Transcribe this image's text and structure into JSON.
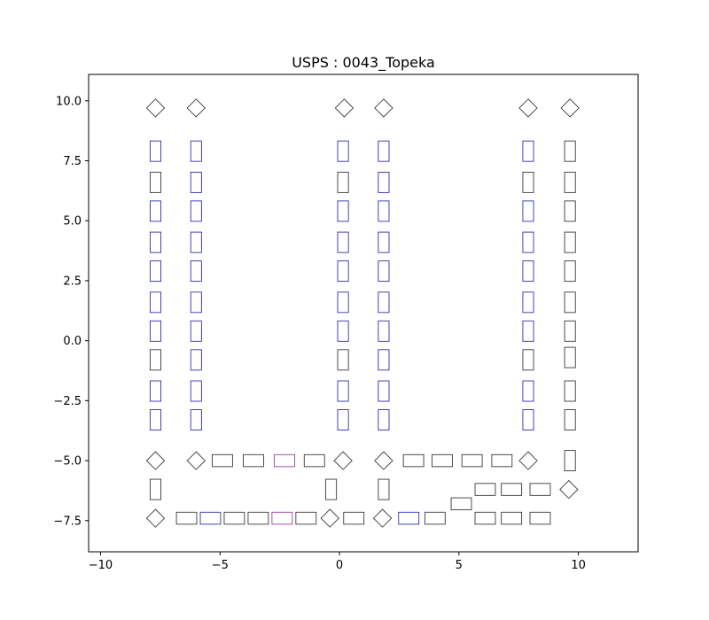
{
  "chart_data": {
    "type": "scatter",
    "title": "USPS : 0043_Topeka",
    "xlabel": "",
    "ylabel": "",
    "xlim": [
      -10.5,
      12.5
    ],
    "ylim": [
      -8.8,
      11.1
    ],
    "xticks": [
      -10,
      -5,
      0,
      5,
      10
    ],
    "yticks": [
      -7.5,
      -5.0,
      -2.5,
      0.0,
      2.5,
      5.0,
      7.5,
      10.0
    ],
    "xtick_labels": [
      "−10",
      "−5",
      "0",
      "5",
      "10"
    ],
    "ytick_labels": [
      "−7.5",
      "−5.0",
      "−2.5",
      "0.0",
      "2.5",
      "5.0",
      "7.5",
      "10.0"
    ],
    "grid": false,
    "colors": {
      "dark": "#3a3a3a",
      "blue": "#2f2fb8",
      "purple": "#a23aa2",
      "axes": "#000000"
    },
    "rect_size": {
      "vertical": [
        0.45,
        0.85
      ],
      "horizontal": [
        0.85,
        0.5
      ],
      "diamond": 0.65
    },
    "shapes": [
      {
        "kind": "diamond",
        "x": -7.7,
        "y": 9.7,
        "color": "dark"
      },
      {
        "kind": "diamond",
        "x": -6.0,
        "y": 9.7,
        "color": "dark"
      },
      {
        "kind": "diamond",
        "x": 0.2,
        "y": 9.7,
        "color": "dark"
      },
      {
        "kind": "diamond",
        "x": 1.85,
        "y": 9.7,
        "color": "dark"
      },
      {
        "kind": "diamond",
        "x": 7.9,
        "y": 9.7,
        "color": "dark"
      },
      {
        "kind": "diamond",
        "x": 9.65,
        "y": 9.7,
        "color": "dark"
      },
      {
        "kind": "vertical",
        "x": -7.7,
        "y": 7.9,
        "color": "blue"
      },
      {
        "kind": "vertical",
        "x": -7.7,
        "y": 6.6,
        "color": "dark"
      },
      {
        "kind": "vertical",
        "x": -7.7,
        "y": 5.4,
        "color": "blue"
      },
      {
        "kind": "vertical",
        "x": -7.7,
        "y": 4.1,
        "color": "blue"
      },
      {
        "kind": "vertical",
        "x": -7.7,
        "y": 2.9,
        "color": "blue"
      },
      {
        "kind": "vertical",
        "x": -7.7,
        "y": 1.6,
        "color": "blue"
      },
      {
        "kind": "vertical",
        "x": -7.7,
        "y": 0.4,
        "color": "blue"
      },
      {
        "kind": "vertical",
        "x": -7.7,
        "y": -0.8,
        "color": "dark"
      },
      {
        "kind": "vertical",
        "x": -7.7,
        "y": -2.1,
        "color": "blue"
      },
      {
        "kind": "vertical",
        "x": -7.7,
        "y": -3.3,
        "color": "blue"
      },
      {
        "kind": "vertical",
        "x": -6.0,
        "y": 7.9,
        "color": "blue"
      },
      {
        "kind": "vertical",
        "x": -6.0,
        "y": 6.6,
        "color": "blue"
      },
      {
        "kind": "vertical",
        "x": -6.0,
        "y": 5.4,
        "color": "blue"
      },
      {
        "kind": "vertical",
        "x": -6.0,
        "y": 4.1,
        "color": "blue"
      },
      {
        "kind": "vertical",
        "x": -6.0,
        "y": 2.9,
        "color": "blue"
      },
      {
        "kind": "vertical",
        "x": -6.0,
        "y": 1.6,
        "color": "blue"
      },
      {
        "kind": "vertical",
        "x": -6.0,
        "y": 0.4,
        "color": "blue"
      },
      {
        "kind": "vertical",
        "x": -6.0,
        "y": -0.8,
        "color": "blue"
      },
      {
        "kind": "vertical",
        "x": -6.0,
        "y": -2.1,
        "color": "blue"
      },
      {
        "kind": "vertical",
        "x": -6.0,
        "y": -3.3,
        "color": "blue"
      },
      {
        "kind": "vertical",
        "x": 0.15,
        "y": 7.9,
        "color": "blue"
      },
      {
        "kind": "vertical",
        "x": 0.15,
        "y": 6.6,
        "color": "dark"
      },
      {
        "kind": "vertical",
        "x": 0.15,
        "y": 5.4,
        "color": "blue"
      },
      {
        "kind": "vertical",
        "x": 0.15,
        "y": 4.1,
        "color": "blue"
      },
      {
        "kind": "vertical",
        "x": 0.15,
        "y": 2.9,
        "color": "blue"
      },
      {
        "kind": "vertical",
        "x": 0.15,
        "y": 1.6,
        "color": "blue"
      },
      {
        "kind": "vertical",
        "x": 0.15,
        "y": 0.4,
        "color": "blue"
      },
      {
        "kind": "vertical",
        "x": 0.15,
        "y": -0.8,
        "color": "dark"
      },
      {
        "kind": "vertical",
        "x": 0.15,
        "y": -2.1,
        "color": "blue"
      },
      {
        "kind": "vertical",
        "x": 0.15,
        "y": -3.3,
        "color": "blue"
      },
      {
        "kind": "vertical",
        "x": 1.85,
        "y": 7.9,
        "color": "blue"
      },
      {
        "kind": "vertical",
        "x": 1.85,
        "y": 6.6,
        "color": "blue"
      },
      {
        "kind": "vertical",
        "x": 1.85,
        "y": 5.4,
        "color": "blue"
      },
      {
        "kind": "vertical",
        "x": 1.85,
        "y": 4.1,
        "color": "blue"
      },
      {
        "kind": "vertical",
        "x": 1.85,
        "y": 2.9,
        "color": "blue"
      },
      {
        "kind": "vertical",
        "x": 1.85,
        "y": 1.6,
        "color": "blue"
      },
      {
        "kind": "vertical",
        "x": 1.85,
        "y": 0.4,
        "color": "blue"
      },
      {
        "kind": "vertical",
        "x": 1.85,
        "y": -0.8,
        "color": "blue"
      },
      {
        "kind": "vertical",
        "x": 1.85,
        "y": -2.1,
        "color": "blue"
      },
      {
        "kind": "vertical",
        "x": 1.85,
        "y": -3.3,
        "color": "blue"
      },
      {
        "kind": "vertical",
        "x": 7.9,
        "y": 7.9,
        "color": "blue"
      },
      {
        "kind": "vertical",
        "x": 7.9,
        "y": 6.6,
        "color": "dark"
      },
      {
        "kind": "vertical",
        "x": 7.9,
        "y": 5.4,
        "color": "blue"
      },
      {
        "kind": "vertical",
        "x": 7.9,
        "y": 4.1,
        "color": "blue"
      },
      {
        "kind": "vertical",
        "x": 7.9,
        "y": 2.9,
        "color": "blue"
      },
      {
        "kind": "vertical",
        "x": 7.9,
        "y": 1.6,
        "color": "blue"
      },
      {
        "kind": "vertical",
        "x": 7.9,
        "y": 0.4,
        "color": "blue"
      },
      {
        "kind": "vertical",
        "x": 7.9,
        "y": -0.8,
        "color": "dark"
      },
      {
        "kind": "vertical",
        "x": 7.9,
        "y": -2.1,
        "color": "blue"
      },
      {
        "kind": "vertical",
        "x": 7.9,
        "y": -3.3,
        "color": "blue"
      },
      {
        "kind": "vertical",
        "x": 9.65,
        "y": 7.9,
        "color": "dark"
      },
      {
        "kind": "vertical",
        "x": 9.65,
        "y": 6.6,
        "color": "dark"
      },
      {
        "kind": "vertical",
        "x": 9.65,
        "y": 5.4,
        "color": "dark"
      },
      {
        "kind": "vertical",
        "x": 9.65,
        "y": 4.1,
        "color": "dark"
      },
      {
        "kind": "vertical",
        "x": 9.65,
        "y": 2.9,
        "color": "dark"
      },
      {
        "kind": "vertical",
        "x": 9.65,
        "y": 1.6,
        "color": "dark"
      },
      {
        "kind": "vertical",
        "x": 9.65,
        "y": 0.4,
        "color": "dark"
      },
      {
        "kind": "vertical",
        "x": 9.65,
        "y": -0.7,
        "color": "dark"
      },
      {
        "kind": "vertical",
        "x": 9.65,
        "y": -2.1,
        "color": "dark"
      },
      {
        "kind": "vertical",
        "x": 9.65,
        "y": -3.3,
        "color": "dark"
      },
      {
        "kind": "diamond",
        "x": -7.7,
        "y": -5.0,
        "color": "dark"
      },
      {
        "kind": "diamond",
        "x": -6.0,
        "y": -5.0,
        "color": "dark"
      },
      {
        "kind": "horizontal",
        "x": -4.9,
        "y": -5.0,
        "color": "dark"
      },
      {
        "kind": "horizontal",
        "x": -3.6,
        "y": -5.0,
        "color": "dark"
      },
      {
        "kind": "horizontal",
        "x": -2.3,
        "y": -5.0,
        "color": "purple"
      },
      {
        "kind": "horizontal",
        "x": -1.05,
        "y": -5.0,
        "color": "dark"
      },
      {
        "kind": "diamond",
        "x": 0.15,
        "y": -5.0,
        "color": "dark"
      },
      {
        "kind": "diamond",
        "x": 1.85,
        "y": -5.0,
        "color": "dark"
      },
      {
        "kind": "horizontal",
        "x": 3.1,
        "y": -5.0,
        "color": "dark"
      },
      {
        "kind": "horizontal",
        "x": 4.3,
        "y": -5.0,
        "color": "dark"
      },
      {
        "kind": "horizontal",
        "x": 5.55,
        "y": -5.0,
        "color": "dark"
      },
      {
        "kind": "horizontal",
        "x": 6.8,
        "y": -5.0,
        "color": "dark"
      },
      {
        "kind": "diamond",
        "x": 7.9,
        "y": -5.0,
        "color": "dark"
      },
      {
        "kind": "vertical",
        "x": 9.65,
        "y": -5.0,
        "color": "dark"
      },
      {
        "kind": "vertical",
        "x": -7.7,
        "y": -6.2,
        "color": "dark"
      },
      {
        "kind": "vertical",
        "x": -0.35,
        "y": -6.2,
        "color": "dark"
      },
      {
        "kind": "vertical",
        "x": 1.85,
        "y": -6.2,
        "color": "dark"
      },
      {
        "kind": "horizontal",
        "x": 5.1,
        "y": -6.8,
        "color": "dark"
      },
      {
        "kind": "horizontal",
        "x": 6.1,
        "y": -6.2,
        "color": "dark"
      },
      {
        "kind": "horizontal",
        "x": 7.2,
        "y": -6.2,
        "color": "dark"
      },
      {
        "kind": "horizontal",
        "x": 8.4,
        "y": -6.2,
        "color": "dark"
      },
      {
        "kind": "diamond",
        "x": 9.6,
        "y": -6.2,
        "color": "dark"
      },
      {
        "kind": "diamond",
        "x": -7.7,
        "y": -7.4,
        "color": "dark"
      },
      {
        "kind": "horizontal",
        "x": -6.4,
        "y": -7.4,
        "color": "dark"
      },
      {
        "kind": "horizontal",
        "x": -5.4,
        "y": -7.4,
        "color": "blue"
      },
      {
        "kind": "horizontal",
        "x": -4.4,
        "y": -7.4,
        "color": "dark"
      },
      {
        "kind": "horizontal",
        "x": -3.4,
        "y": -7.4,
        "color": "dark"
      },
      {
        "kind": "horizontal",
        "x": -2.4,
        "y": -7.4,
        "color": "purple"
      },
      {
        "kind": "horizontal",
        "x": -1.4,
        "y": -7.4,
        "color": "dark"
      },
      {
        "kind": "diamond",
        "x": -0.4,
        "y": -7.4,
        "color": "dark"
      },
      {
        "kind": "horizontal",
        "x": 0.6,
        "y": -7.4,
        "color": "dark"
      },
      {
        "kind": "diamond",
        "x": 1.8,
        "y": -7.4,
        "color": "dark"
      },
      {
        "kind": "horizontal",
        "x": 2.9,
        "y": -7.4,
        "color": "blue"
      },
      {
        "kind": "horizontal",
        "x": 4.0,
        "y": -7.4,
        "color": "dark"
      },
      {
        "kind": "horizontal",
        "x": 6.1,
        "y": -7.4,
        "color": "dark"
      },
      {
        "kind": "horizontal",
        "x": 7.2,
        "y": -7.4,
        "color": "dark"
      },
      {
        "kind": "horizontal",
        "x": 8.4,
        "y": -7.4,
        "color": "dark"
      }
    ]
  }
}
